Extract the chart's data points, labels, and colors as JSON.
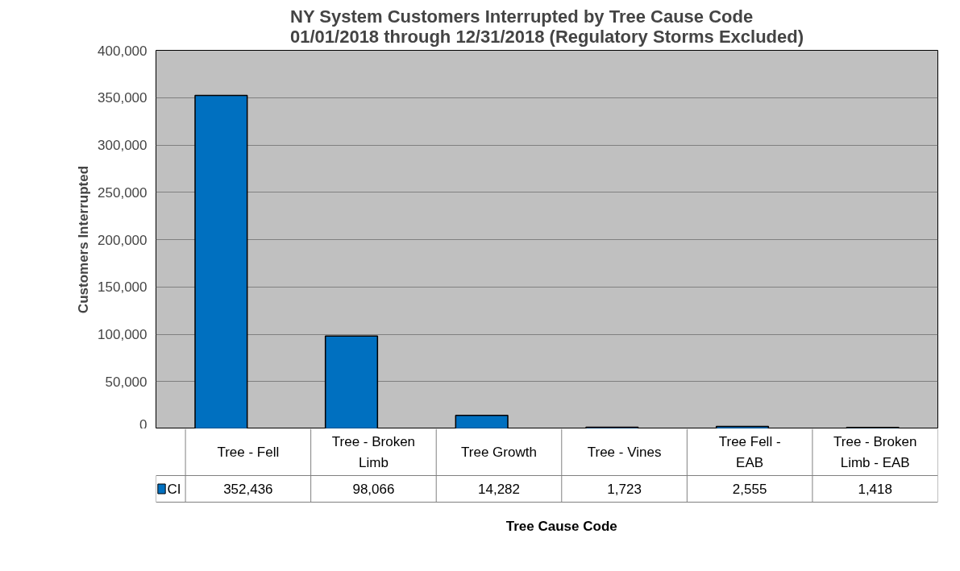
{
  "chart_data": {
    "type": "bar",
    "title": "NY System Customers Interrupted by Tree Cause Code\n01/01/2018 through 12/31/2018 (Regulatory Storms Excluded)",
    "xlabel": "Tree Cause Code",
    "ylabel": "Customers Interrupted",
    "categories": [
      "Tree - Fell",
      "Tree - Broken\nLimb",
      "Tree Growth",
      "Tree - Vines",
      "Tree Fell -\nEAB",
      "Tree - Broken\nLimb - EAB"
    ],
    "series": [
      {
        "name": "CI",
        "color": "#0070c0",
        "values": [
          352436,
          98066,
          14282,
          1723,
          2555,
          1418
        ],
        "value_labels": [
          "352,436",
          "98,066",
          "14,282",
          "1,723",
          "2,555",
          "1,418"
        ]
      }
    ],
    "ylim": [
      0,
      400000
    ],
    "yticks": [
      {
        "value": 0,
        "label": "0"
      },
      {
        "value": 50000,
        "label": "50,000"
      },
      {
        "value": 100000,
        "label": "100,000"
      },
      {
        "value": 150000,
        "label": "150,000"
      },
      {
        "value": 200000,
        "label": "200,000"
      },
      {
        "value": 250000,
        "label": "250,000"
      },
      {
        "value": 300000,
        "label": "300,000"
      },
      {
        "value": 350000,
        "label": "350,000"
      },
      {
        "value": 400000,
        "label": "400,000"
      }
    ],
    "grid": "y",
    "legend": "bottom"
  }
}
